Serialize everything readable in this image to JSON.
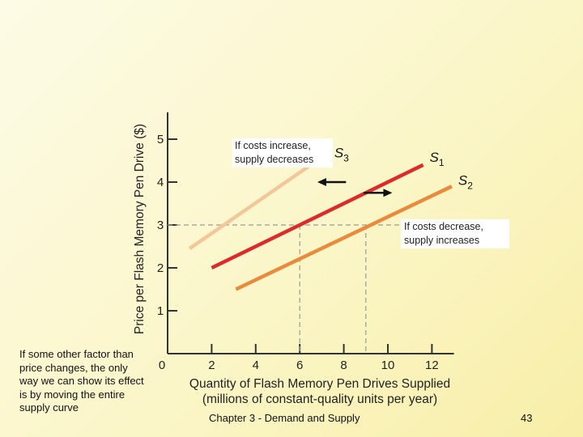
{
  "chart_data": {
    "type": "line",
    "title": "",
    "xlabel_line1": "Quantity of Flash Memory Pen Drives Supplied",
    "xlabel_line2": "(millions of constant-quality units per year)",
    "ylabel": "Price per Flash Memory Pen Drive ($)",
    "xlim": [
      0,
      13
    ],
    "ylim": [
      0,
      5.4
    ],
    "x_ticks": [
      2,
      4,
      6,
      8,
      10,
      12
    ],
    "y_ticks": [
      1,
      2,
      3,
      4,
      5
    ],
    "origin_label": "0",
    "grid": false,
    "series": [
      {
        "name": "S3",
        "base": "S",
        "sub": "3",
        "color": "#f2c89a",
        "points": [
          [
            1,
            2.45
          ],
          [
            7.2,
            4.65
          ]
        ]
      },
      {
        "name": "S1",
        "base": "S",
        "sub": "1",
        "color": "#dd2b2b",
        "points": [
          [
            2,
            2.0
          ],
          [
            11.6,
            4.4
          ]
        ]
      },
      {
        "name": "S2",
        "base": "S",
        "sub": "2",
        "color": "#ea8a3c",
        "points": [
          [
            3.1,
            1.5
          ],
          [
            12.9,
            3.9
          ]
        ]
      }
    ],
    "reference_lines": {
      "price": 3,
      "quantities": [
        6,
        9
      ]
    },
    "shift_arrows": [
      {
        "direction": "left",
        "from": [
          8.1,
          4.0
        ],
        "to": [
          6.8,
          4.0
        ]
      },
      {
        "direction": "right",
        "from": [
          8.9,
          3.75
        ],
        "to": [
          10.2,
          3.75
        ]
      }
    ]
  },
  "annotations": {
    "costs_increase": "If costs increase, supply decreases",
    "costs_decrease": "If costs decrease, supply increases",
    "other_factor": "If some other factor than price changes, the only way we can show its effect is by moving the entire supply curve"
  },
  "footer": {
    "chapter": "Chapter 3 - Demand and Supply",
    "page": "43"
  },
  "colors": {
    "axis": "#333333",
    "guide": "#9a9a9a",
    "arrow": "#111111"
  }
}
